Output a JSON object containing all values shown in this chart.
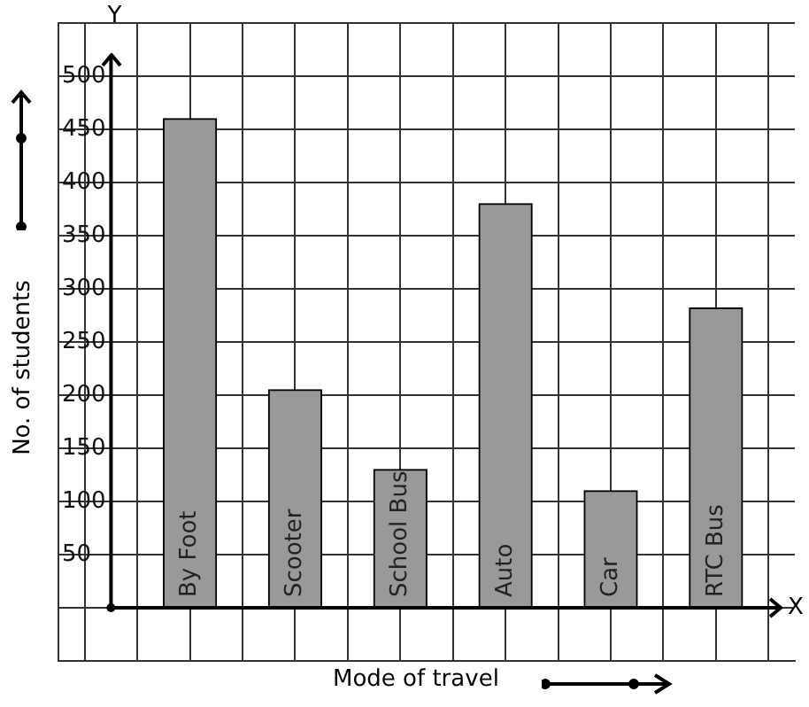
{
  "chart_data": {
    "type": "bar",
    "xlabel": "Mode of travel",
    "ylabel": "No. of students",
    "categories": [
      "By Foot",
      "Scooter",
      "School Bus",
      "Auto",
      "Car",
      "RTC Bus"
    ],
    "values": [
      460,
      205,
      130,
      380,
      110,
      282
    ],
    "color": "#999999",
    "ylim": [
      -50,
      550
    ],
    "yticks": [
      {
        "value": -50,
        "label": null
      },
      {
        "value": 0,
        "label": null
      },
      50,
      100,
      150,
      200,
      250,
      300,
      350,
      400,
      450,
      500,
      {
        "value": 550,
        "label": null
      }
    ],
    "annotations": [
      "X",
      "Y"
    ],
    "grid": true,
    "legend": false
  }
}
